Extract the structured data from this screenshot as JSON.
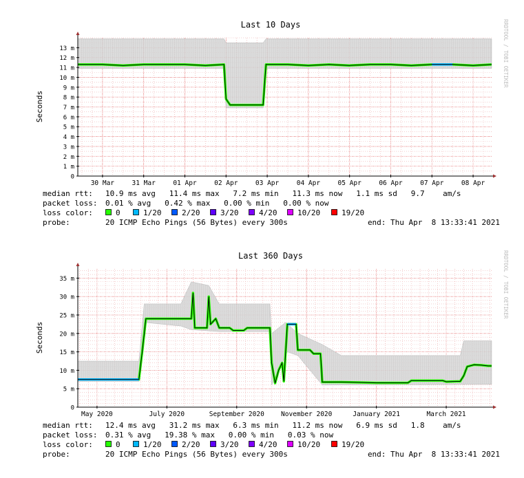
{
  "charts": [
    {
      "watermark": "RRDTOOL / TOBI OETIKER",
      "stats": {
        "median_label": "median rtt:",
        "median_values": "10.9 ms avg   11.4 ms max   7.2 ms min   11.3 ms now   1.1 ms sd   9.7    am/s",
        "loss_label": "packet loss:",
        "loss_values": "0.01 % avg   0.42 % max   0.00 % min   0.00 % now",
        "color_label": "loss color:",
        "probe_label": "probe:",
        "probe_value": "20 ICMP Echo Pings (56 Bytes) every 300s",
        "end_value": "end: Thu Apr  8 13:33:41 2021"
      }
    },
    {
      "watermark": "RRDTOOL / TOBI OETIKER",
      "stats": {
        "median_label": "median rtt:",
        "median_values": "12.4 ms avg   31.2 ms max   6.3 ms min   11.2 ms now   6.9 ms sd   1.8    am/s",
        "loss_label": "packet loss:",
        "loss_values": "0.31 % avg   19.38 % max   0.00 % min   0.03 % now",
        "color_label": "loss color:",
        "probe_label": "probe:",
        "probe_value": "20 ICMP Echo Pings (56 Bytes) every 300s",
        "end_value": "end: Thu Apr  8 13:33:41 2021"
      }
    }
  ],
  "loss_legend": [
    {
      "label": "0",
      "color": "#26ff00"
    },
    {
      "label": "1/20",
      "color": "#00b8ff"
    },
    {
      "label": "2/20",
      "color": "#0059ff"
    },
    {
      "label": "3/20",
      "color": "#5e00ff"
    },
    {
      "label": "4/20",
      "color": "#7e00ff"
    },
    {
      "label": "10/20",
      "color": "#dd00ff"
    },
    {
      "label": "19/20",
      "color": "#ff0000"
    }
  ],
  "colors": {
    "grid_minor": "#e9a0a0",
    "grid_major": "#e98080",
    "smoke": "#cccccc",
    "median": "#000000",
    "axis": "#000000",
    "arrow": "#a03333",
    "watermark": "#bbbbbb"
  },
  "chart_data": [
    {
      "type": "line",
      "title": "Last 10 Days",
      "ylabel": "Seconds",
      "xlabel": "",
      "grid": true,
      "x_unit": "days",
      "xlim": [
        -0.6,
        9.45
      ],
      "ylim": [
        0,
        14
      ],
      "y_ticks": [
        0,
        1,
        2,
        3,
        4,
        5,
        6,
        7,
        8,
        9,
        10,
        11,
        12,
        13
      ],
      "y_tick_labels": [
        "0",
        "1 m",
        "2 m",
        "3 m",
        "4 m",
        "5 m",
        "6 m",
        "7 m",
        "8 m",
        "9 m",
        "10 m",
        "11 m",
        "12 m",
        "13 m"
      ],
      "x_ticks": [
        0,
        1,
        2,
        3,
        4,
        5,
        6,
        7,
        8,
        9
      ],
      "x_tick_labels": [
        "30 Mar",
        "31 Mar",
        "01 Apr",
        "02 Apr",
        "03 Apr",
        "04 Apr",
        "05 Apr",
        "06 Apr",
        "07 Apr",
        "08 Apr"
      ],
      "series": [
        {
          "points": [
            [
              -0.6,
              11.3
            ],
            [
              0.0,
              11.3
            ],
            [
              0.5,
              11.2
            ],
            [
              1.0,
              11.3
            ],
            [
              1.5,
              11.3
            ],
            [
              2.0,
              11.3
            ],
            [
              2.5,
              11.2
            ],
            [
              2.95,
              11.3
            ],
            [
              3.0,
              7.8
            ],
            [
              3.1,
              7.2
            ],
            [
              3.5,
              7.2
            ],
            [
              3.9,
              7.2
            ],
            [
              3.97,
              11.3
            ],
            [
              4.5,
              11.3
            ],
            [
              5.0,
              11.2
            ],
            [
              5.5,
              11.3
            ],
            [
              6.0,
              11.2
            ],
            [
              6.5,
              11.3
            ],
            [
              7.0,
              11.3
            ],
            [
              7.5,
              11.2
            ],
            [
              8.0,
              11.3
            ],
            [
              8.5,
              11.3
            ],
            [
              9.0,
              11.2
            ],
            [
              9.45,
              11.3
            ]
          ],
          "loss_segments": [
            [
              7.6,
              8.5,
              "1/20"
            ],
            [
              8.9,
              9.2,
              "1/20"
            ]
          ]
        }
      ],
      "smoke_top": [
        [
          -0.6,
          13.9
        ],
        [
          2.95,
          13.9
        ],
        [
          3.0,
          13.5
        ],
        [
          3.9,
          13.5
        ],
        [
          3.97,
          13.9
        ],
        [
          9.45,
          13.9
        ]
      ],
      "smoke_bottom": [
        [
          -0.6,
          10.9
        ],
        [
          2.95,
          10.9
        ],
        [
          3.0,
          6.9
        ],
        [
          3.9,
          6.9
        ],
        [
          3.97,
          10.9
        ],
        [
          9.45,
          10.9
        ]
      ]
    },
    {
      "type": "line",
      "title": "Last 360 Days",
      "ylabel": "Seconds",
      "xlabel": "",
      "grid": true,
      "x_unit": "months",
      "xlim": [
        -0.55,
        11.3
      ],
      "ylim": [
        0,
        37.5
      ],
      "y_ticks": [
        0,
        5,
        10,
        15,
        20,
        25,
        30,
        35
      ],
      "y_tick_labels": [
        "0",
        "5 m",
        "10 m",
        "15 m",
        "20 m",
        "25 m",
        "30 m",
        "35 m"
      ],
      "x_ticks": [
        0,
        2,
        4,
        6,
        8,
        10
      ],
      "x_tick_labels": [
        "May 2020",
        "July 2020",
        "September 2020",
        "November 2020",
        "January 2021",
        "March 2021"
      ],
      "series": [
        {
          "points": [
            [
              -0.55,
              7.5
            ],
            [
              1.2,
              7.5
            ],
            [
              1.3,
              15.5
            ],
            [
              1.4,
              24
            ],
            [
              2.4,
              24
            ],
            [
              2.7,
              24
            ],
            [
              2.75,
              31
            ],
            [
              2.8,
              21.5
            ],
            [
              3.15,
              21.5
            ],
            [
              3.2,
              30
            ],
            [
              3.25,
              22.5
            ],
            [
              3.4,
              24
            ],
            [
              3.5,
              21.5
            ],
            [
              3.8,
              21.5
            ],
            [
              3.9,
              20.8
            ],
            [
              4.2,
              20.8
            ],
            [
              4.3,
              21.5
            ],
            [
              4.95,
              21.5
            ],
            [
              5.0,
              12
            ],
            [
              5.1,
              6.5
            ],
            [
              5.2,
              10
            ],
            [
              5.3,
              12
            ],
            [
              5.35,
              7
            ],
            [
              5.45,
              22.5
            ],
            [
              5.7,
              22.5
            ],
            [
              5.75,
              15.5
            ],
            [
              6.1,
              15.5
            ],
            [
              6.2,
              14.5
            ],
            [
              6.4,
              14.5
            ],
            [
              6.45,
              6.8
            ],
            [
              7.0,
              6.8
            ],
            [
              7.6,
              6.7
            ],
            [
              8.0,
              6.6
            ],
            [
              8.9,
              6.6
            ],
            [
              9.0,
              7.2
            ],
            [
              9.9,
              7.2
            ],
            [
              10.0,
              6.9
            ],
            [
              10.3,
              7
            ],
            [
              10.4,
              7
            ],
            [
              10.5,
              8.5
            ],
            [
              10.6,
              11
            ],
            [
              10.8,
              11.5
            ],
            [
              11.0,
              11.4
            ],
            [
              11.2,
              11.2
            ],
            [
              11.3,
              11.2
            ]
          ],
          "loss_segments": [
            [
              -0.55,
              1.2,
              "1/20"
            ],
            [
              5.45,
              5.7,
              "1/20"
            ]
          ]
        }
      ],
      "smoke_top": [
        [
          -0.55,
          12.5
        ],
        [
          1.2,
          12.5
        ],
        [
          1.35,
          28
        ],
        [
          2.4,
          28
        ],
        [
          2.7,
          34
        ],
        [
          3.2,
          33
        ],
        [
          3.5,
          28
        ],
        [
          4.95,
          28
        ],
        [
          5.0,
          20
        ],
        [
          5.4,
          23
        ],
        [
          5.75,
          20
        ],
        [
          6.45,
          17
        ],
        [
          7.0,
          14
        ],
        [
          9.0,
          14
        ],
        [
          10.4,
          14
        ],
        [
          10.5,
          18
        ],
        [
          11.3,
          18
        ]
      ],
      "smoke_bottom": [
        [
          -0.55,
          7.0
        ],
        [
          1.2,
          7.0
        ],
        [
          1.35,
          23
        ],
        [
          2.4,
          22
        ],
        [
          2.7,
          21
        ],
        [
          3.5,
          20.5
        ],
        [
          4.95,
          20.5
        ],
        [
          5.0,
          6.0
        ],
        [
          5.45,
          15
        ],
        [
          5.75,
          14
        ],
        [
          6.45,
          6.0
        ],
        [
          11.3,
          6.2
        ]
      ]
    }
  ]
}
